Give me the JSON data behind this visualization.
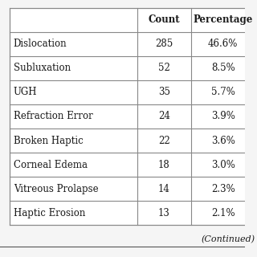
{
  "header": [
    "",
    "Count",
    "Percentage"
  ],
  "rows": [
    [
      "Dislocation",
      "285",
      "46.6%"
    ],
    [
      "Subluxation",
      "52",
      "8.5%"
    ],
    [
      "UGH",
      "35",
      "5.7%"
    ],
    [
      "Refraction Error",
      "24",
      "3.9%"
    ],
    [
      "Broken Haptic",
      "22",
      "3.6%"
    ],
    [
      "Corneal Edema",
      "18",
      "3.0%"
    ],
    [
      "Vitreous Prolapse",
      "14",
      "2.3%"
    ],
    [
      "Haptic Erosion",
      "13",
      "2.1%"
    ]
  ],
  "continued_text": "(Continued)",
  "bg_color": "#f5f5f5",
  "table_bg": "#ffffff",
  "header_bg": "#e8e8e8",
  "border_color": "#888888",
  "text_color": "#1a1a1a",
  "font_size": 8.5,
  "header_font_size": 8.5
}
